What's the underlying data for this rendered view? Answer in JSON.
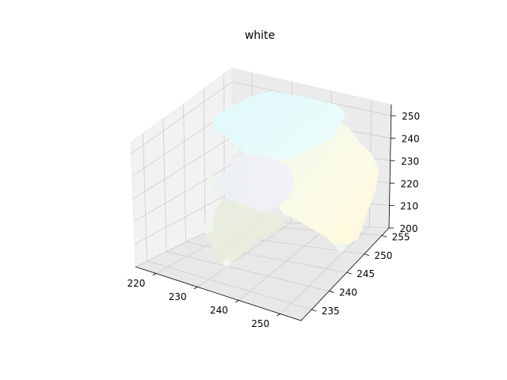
{
  "chart_data": {
    "type": "scatter",
    "projection": "3d",
    "title": "white",
    "xlabel": "",
    "ylabel": "",
    "zlabel": "",
    "xlim": [
      215,
      255
    ],
    "ylim": [
      232,
      257
    ],
    "zlim": [
      200,
      255
    ],
    "xticks": [
      220,
      230,
      240,
      250
    ],
    "yticks": [
      235,
      240,
      245,
      250,
      255
    ],
    "zticks": [
      200,
      210,
      220,
      230,
      240,
      250
    ],
    "grid": true,
    "pane_color": "#f2f2f2",
    "grid_color": "#cccccc",
    "point_color_range": [
      "#eaf9f9",
      "#fffbe0"
    ],
    "regions": [
      {
        "name": "cyan-top",
        "color": "#e6fcfc"
      },
      {
        "name": "lavender-middle",
        "color": "#eeeef6"
      },
      {
        "name": "yellow-right",
        "color": "#fdfbdf"
      },
      {
        "name": "beige-lower",
        "color": "#ecebdd"
      }
    ]
  }
}
